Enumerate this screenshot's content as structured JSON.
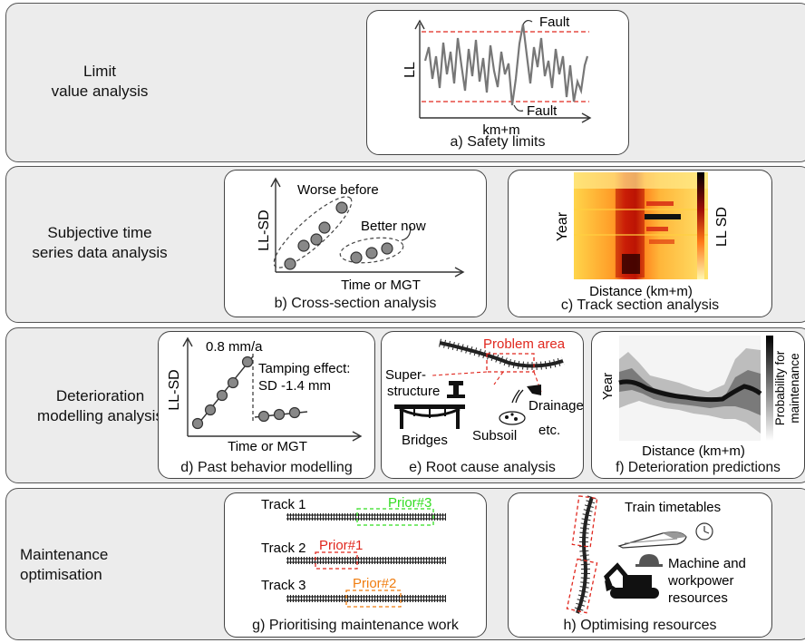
{
  "stages": {
    "limit": "Limit\nvalue analysis",
    "subjective": "Subjective time\nseries data analysis",
    "deterioration": "Deterioration\nmodelling analysis",
    "maintenance": "Maintenance\noptimisation"
  },
  "panels": {
    "a": {
      "caption": "a) Safety limits",
      "ylabel": "LL",
      "xlabel": "km+m",
      "fault_top": "Fault",
      "fault_bottom": "Fault"
    },
    "b": {
      "caption": "b) Cross-section analysis",
      "ylabel": "LL-SD",
      "xlabel": "Time or MGT",
      "worse": "Worse before",
      "better": "Better now"
    },
    "c": {
      "caption": "c) Track section analysis",
      "ylabel": "Year",
      "xlabel": "Distance (km+m)",
      "colorbar": "LL SD"
    },
    "d": {
      "caption": "d) Past behavior modelling",
      "ylabel": "LL-SD",
      "xlabel": "Time or MGT",
      "rate": "0.8 mm/a",
      "tamping1": "Tamping effect:",
      "tamping2": "SD -1.4 mm"
    },
    "e": {
      "caption": "e) Root cause analysis",
      "problem": "Problem area",
      "super1": "Super-",
      "super2": "structure",
      "drainage": "Drainage",
      "bridges": "Bridges",
      "subsoil": "Subsoil",
      "etc": "etc."
    },
    "f": {
      "caption": "f) Deterioration predictions",
      "ylabel": "Year",
      "xlabel": "Distance (km+m)",
      "colorbar1": "Probability for",
      "colorbar2": "maintenance"
    },
    "g": {
      "caption": "g) Prioritising maintenance work",
      "tracks": [
        "Track 1",
        "Track 2",
        "Track 3"
      ],
      "priors": [
        "Prior#3",
        "Prior#1",
        "Prior#2"
      ]
    },
    "h": {
      "caption": "h) Optimising resources",
      "timetables": "Train timetables",
      "machine1": "Machine and",
      "machine2": "workpower",
      "machine3": "resources"
    }
  },
  "colors": {
    "limit_red": "#e0271e",
    "prior1": "#e0271e",
    "prior2": "#f07d10",
    "prior3": "#33dd22",
    "band": "#ececec"
  }
}
